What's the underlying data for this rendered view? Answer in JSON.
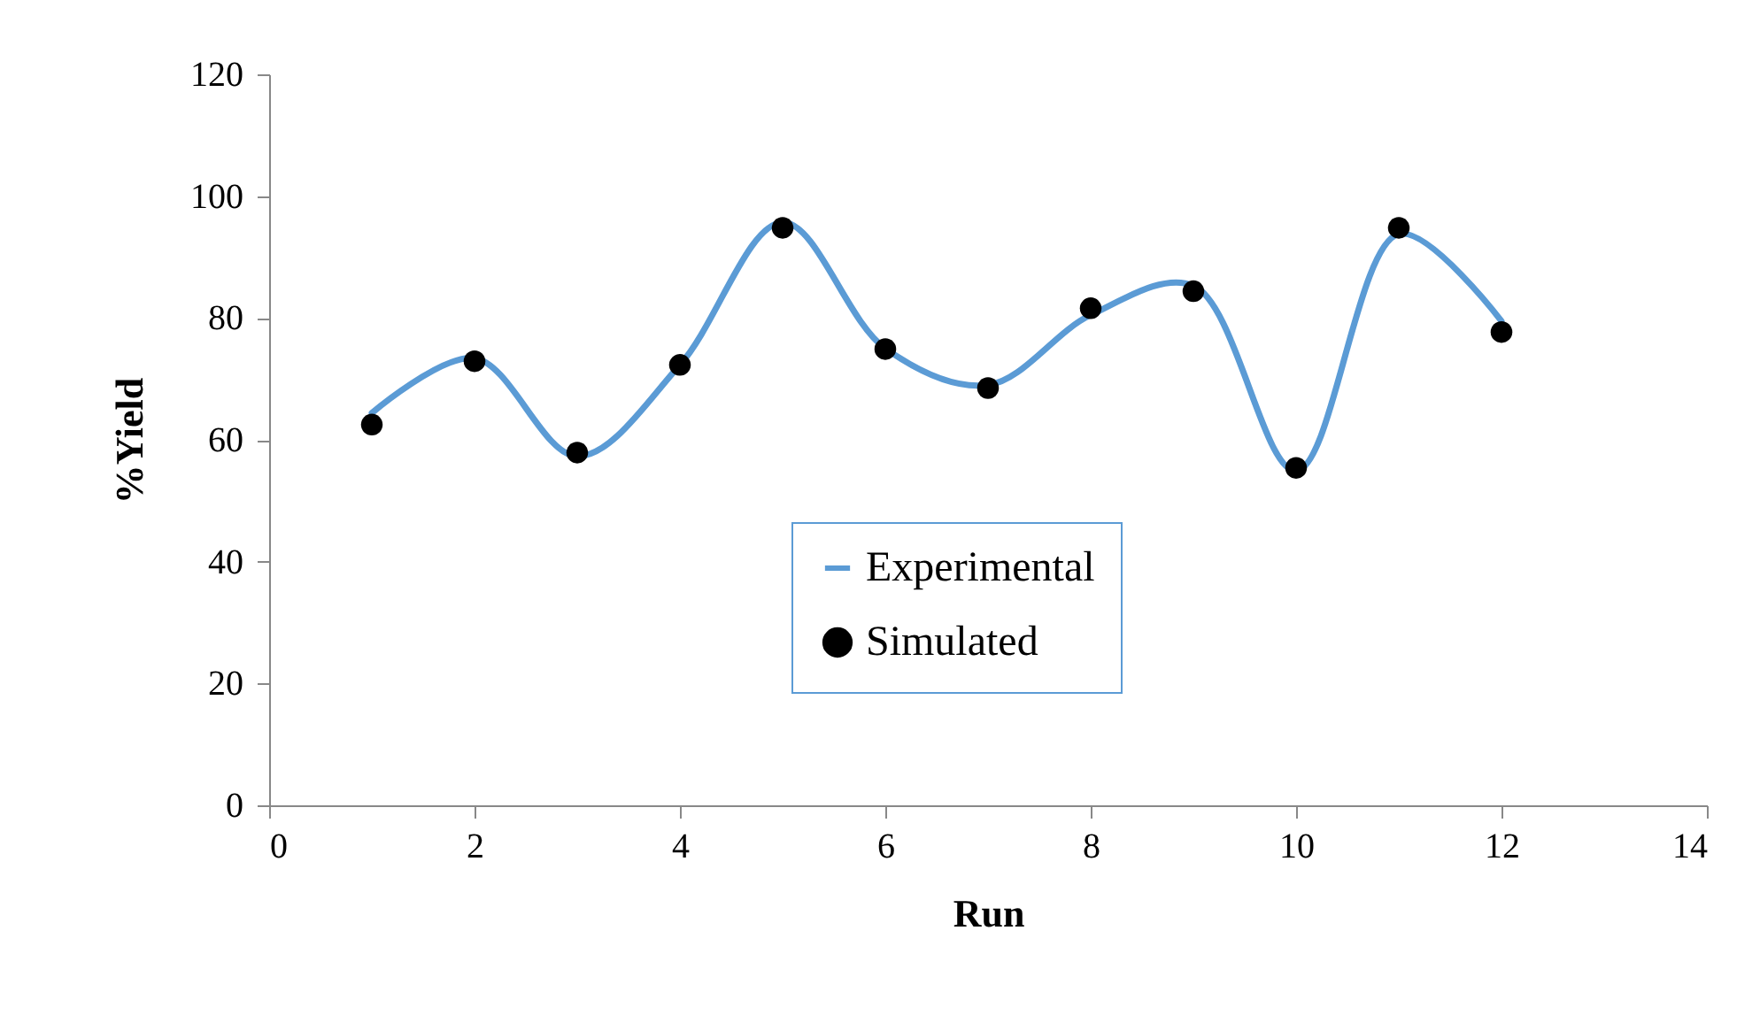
{
  "chart_data": {
    "type": "line",
    "xlabel": "Run",
    "ylabel": "%Yield",
    "x": [
      1,
      2,
      3,
      4,
      5,
      6,
      7,
      8,
      9,
      10,
      11,
      12
    ],
    "series": [
      {
        "name": "Experimental",
        "color": "#5b9bd5",
        "marker": "none",
        "values": [
          64.4,
          73.4,
          57.3,
          72.3,
          95.7,
          75.0,
          69.0,
          80.5,
          85.3,
          54.9,
          93.8,
          79.5
        ]
      },
      {
        "name": "Simulated",
        "type": "scatter",
        "color": "#000000",
        "marker": "circle",
        "values": [
          62.5,
          72.9,
          57.9,
          72.3,
          94.8,
          74.9,
          68.5,
          81.6,
          84.4,
          55.4,
          94.8,
          77.7
        ]
      }
    ],
    "xlim": [
      0,
      14
    ],
    "xticks": [
      0,
      2,
      4,
      6,
      8,
      10,
      12,
      14
    ],
    "ylim": [
      0,
      120
    ],
    "yticks": [
      0,
      20,
      40,
      60,
      80,
      100,
      120
    ],
    "grid": false,
    "legend": "bottom"
  }
}
